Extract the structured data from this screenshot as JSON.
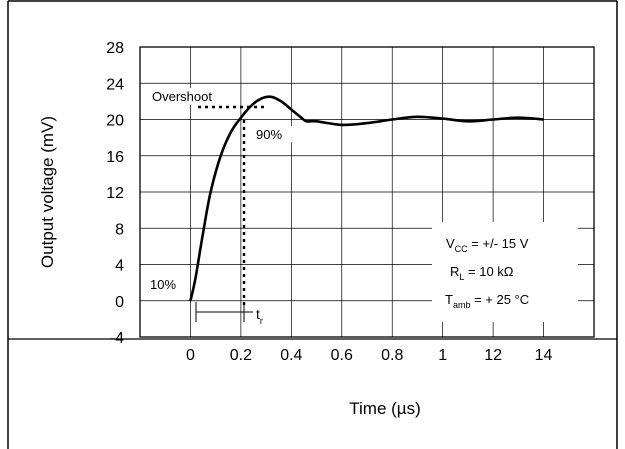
{
  "chart_data": {
    "type": "line",
    "xlabel": "Time (µs)",
    "ylabel": "Output voltage (mV)",
    "x_ticks": [
      "0",
      "0.2",
      "0.4",
      "0.6",
      "0.8",
      "1",
      "12",
      "14"
    ],
    "y_ticks": [
      28,
      24,
      20,
      16,
      12,
      8,
      4,
      0,
      -4
    ],
    "ylim": [
      -4,
      28
    ],
    "grid": true,
    "series": [
      {
        "x": [
          0.0,
          0.02,
          0.05,
          0.08,
          0.12,
          0.16,
          0.2,
          0.24,
          0.28,
          0.32,
          0.36,
          0.4,
          0.44,
          0.46,
          0.5,
          0.6,
          0.7,
          0.8,
          0.9,
          1.0,
          1.1,
          1.2,
          1.3,
          1.4
        ],
        "y": [
          0.0,
          2.5,
          7.5,
          12.0,
          16.0,
          18.6,
          20.2,
          21.5,
          22.3,
          22.5,
          22.0,
          21.1,
          20.2,
          19.8,
          19.8,
          19.4,
          19.6,
          20.0,
          20.3,
          20.1,
          19.8,
          20.0,
          20.2,
          20.0
        ]
      }
    ],
    "annotations": {
      "overshoot": "Overshoot",
      "ninety": "90%",
      "ten": "10%",
      "tr_main": "t",
      "tr_sub": "r",
      "cond1_main": "V",
      "cond1_sub": "CC",
      "cond1_rest": " = +/- 15 V",
      "cond2_main": "R",
      "cond2_sub": "L",
      "cond2_rest": " = 10 kΩ",
      "cond3_main": "T",
      "cond3_sub": "amb",
      "cond3_rest": " = + 25 °C"
    }
  }
}
